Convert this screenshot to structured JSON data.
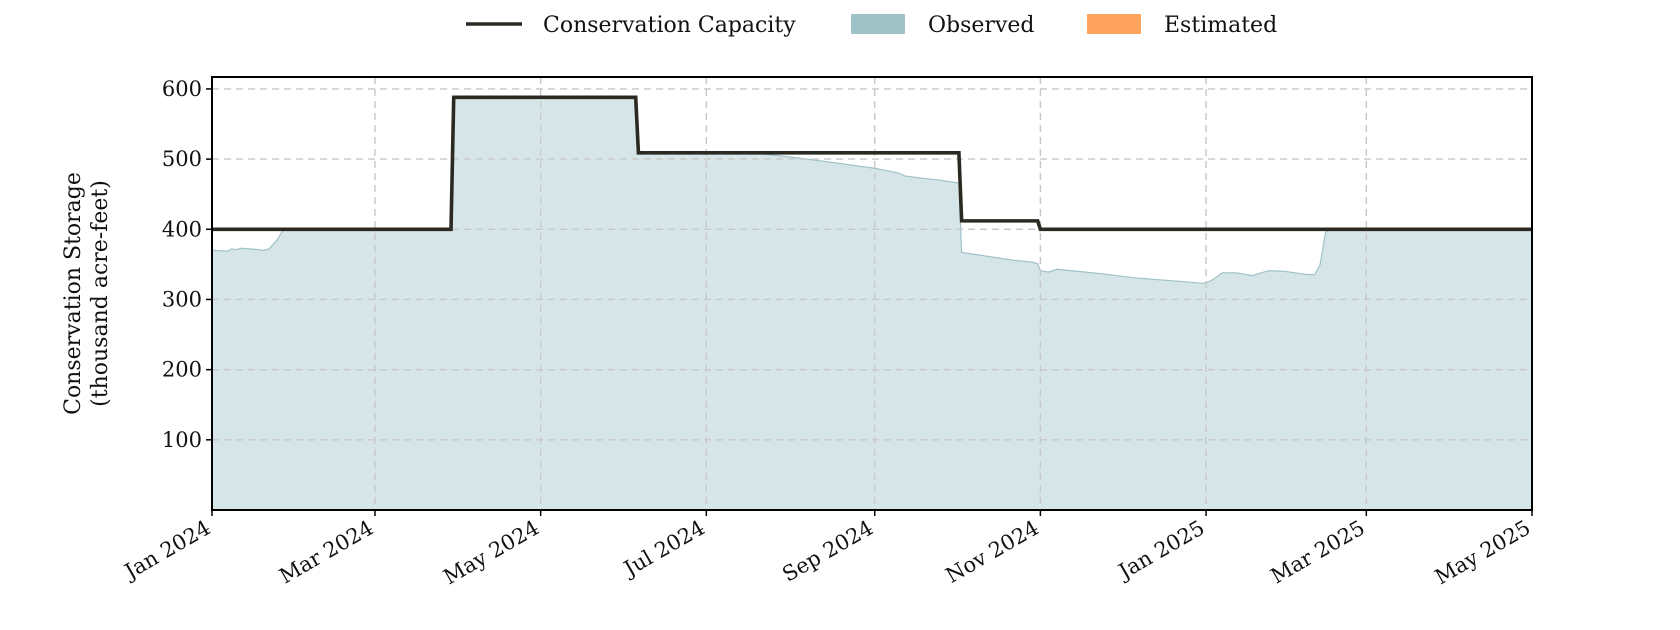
{
  "chart_data": {
    "type": "area",
    "title": "",
    "ylabel_lines": [
      "Conservation Storage",
      "(thousand acre-feet)"
    ],
    "xlabel": "",
    "x_range": [
      "2024-01-01",
      "2025-05-01"
    ],
    "ylim": [
      0,
      617
    ],
    "y_ticks": [
      100,
      200,
      300,
      400,
      500,
      600
    ],
    "x_ticks": [
      {
        "date": "2024-01-01",
        "label": "Jan 2024"
      },
      {
        "date": "2024-03-01",
        "label": "Mar 2024"
      },
      {
        "date": "2024-05-01",
        "label": "May 2024"
      },
      {
        "date": "2024-07-01",
        "label": "Jul 2024"
      },
      {
        "date": "2024-09-01",
        "label": "Sep 2024"
      },
      {
        "date": "2024-11-01",
        "label": "Nov 2024"
      },
      {
        "date": "2025-01-01",
        "label": "Jan 2025"
      },
      {
        "date": "2025-03-01",
        "label": "Mar 2025"
      },
      {
        "date": "2025-05-01",
        "label": "May 2025"
      }
    ],
    "grid": true,
    "legend_position": "top-center",
    "legend": [
      {
        "label": "Conservation Capacity",
        "kind": "line",
        "color": "#2b2a22"
      },
      {
        "label": "Observed",
        "kind": "patch",
        "color": "#9fc2c7"
      },
      {
        "label": "Estimated",
        "kind": "patch",
        "color": "#ffa45e"
      }
    ],
    "series": [
      {
        "name": "Conservation Capacity",
        "kind": "step-line",
        "color": "#2b2a22",
        "points": [
          [
            "2024-01-01",
            400
          ],
          [
            "2024-03-29",
            400
          ],
          [
            "2024-03-30",
            588
          ],
          [
            "2024-06-05",
            588
          ],
          [
            "2024-06-06",
            509
          ],
          [
            "2024-10-02",
            509
          ],
          [
            "2024-10-03",
            412
          ],
          [
            "2024-10-31",
            412
          ],
          [
            "2024-11-01",
            400
          ],
          [
            "2025-05-01",
            400
          ]
        ]
      },
      {
        "name": "Observed",
        "kind": "area",
        "color": "#9fc2c7",
        "points": [
          [
            "2024-01-01",
            370
          ],
          [
            "2024-01-07",
            369
          ],
          [
            "2024-01-08",
            372
          ],
          [
            "2024-01-10",
            371
          ],
          [
            "2024-01-12",
            373
          ],
          [
            "2024-01-18",
            371
          ],
          [
            "2024-01-20",
            370
          ],
          [
            "2024-01-22",
            372
          ],
          [
            "2024-01-25",
            385
          ],
          [
            "2024-01-27",
            398
          ],
          [
            "2024-01-28",
            400
          ],
          [
            "2024-03-29",
            400
          ],
          [
            "2024-03-30",
            588
          ],
          [
            "2024-06-05",
            588
          ],
          [
            "2024-06-06",
            509
          ],
          [
            "2024-07-20",
            508
          ],
          [
            "2024-08-01",
            503
          ],
          [
            "2024-08-15",
            496
          ],
          [
            "2024-09-01",
            487
          ],
          [
            "2024-09-10",
            480
          ],
          [
            "2024-09-12",
            476
          ],
          [
            "2024-09-18",
            473
          ],
          [
            "2024-09-25",
            470
          ],
          [
            "2024-09-30",
            467
          ],
          [
            "2024-10-02",
            466
          ],
          [
            "2024-10-03",
            367
          ],
          [
            "2024-10-10",
            363
          ],
          [
            "2024-10-15",
            360
          ],
          [
            "2024-10-22",
            356
          ],
          [
            "2024-10-29",
            353
          ],
          [
            "2024-10-31",
            351
          ],
          [
            "2024-11-01",
            341
          ],
          [
            "2024-11-04",
            339
          ],
          [
            "2024-11-07",
            343
          ],
          [
            "2024-11-15",
            340
          ],
          [
            "2024-11-25",
            336
          ],
          [
            "2024-12-05",
            331
          ],
          [
            "2024-12-15",
            328
          ],
          [
            "2024-12-25",
            325
          ],
          [
            "2024-12-31",
            323
          ],
          [
            "2025-01-03",
            327
          ],
          [
            "2025-01-07",
            338
          ],
          [
            "2025-01-12",
            338
          ],
          [
            "2025-01-18",
            334
          ],
          [
            "2025-01-24",
            341
          ],
          [
            "2025-01-30",
            340
          ],
          [
            "2025-02-06",
            336
          ],
          [
            "2025-02-10",
            335
          ],
          [
            "2025-02-12",
            350
          ],
          [
            "2025-02-14",
            396
          ],
          [
            "2025-02-16",
            400
          ],
          [
            "2025-05-01",
            400
          ]
        ]
      },
      {
        "name": "Estimated",
        "kind": "area",
        "color": "#ffa45e",
        "points": []
      }
    ]
  }
}
